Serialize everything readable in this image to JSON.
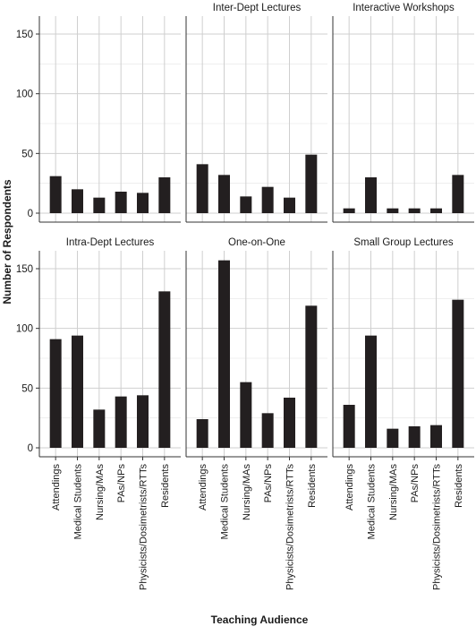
{
  "chart_data": {
    "type": "bar",
    "xlabel": "Teaching Audience",
    "ylabel": "Number of Respondents",
    "ylim": [
      0,
      165
    ],
    "yticks": [
      0,
      50,
      100,
      150
    ],
    "grid": true,
    "categories": [
      "Attendings",
      "Medical Students",
      "Nursing/MAs",
      "PAs/NPs",
      "Physicists/Dosimetrists/RTTs",
      "Residents"
    ],
    "bar_color": "#231f20",
    "panels": [
      {
        "title": "",
        "values": [
          31,
          20,
          13,
          18,
          17,
          30
        ]
      },
      {
        "title": "Inter-Dept Lectures",
        "values": [
          41,
          32,
          14,
          22,
          13,
          49
        ]
      },
      {
        "title": "Interactive Workshops",
        "values": [
          4,
          30,
          4,
          4,
          4,
          32
        ]
      },
      {
        "title": "Intra-Dept Lectures",
        "values": [
          91,
          94,
          32,
          43,
          44,
          131
        ]
      },
      {
        "title": "One-on-One",
        "values": [
          24,
          157,
          55,
          29,
          42,
          119
        ]
      },
      {
        "title": "Small Group Lectures",
        "values": [
          36,
          94,
          16,
          18,
          19,
          124
        ]
      }
    ]
  }
}
